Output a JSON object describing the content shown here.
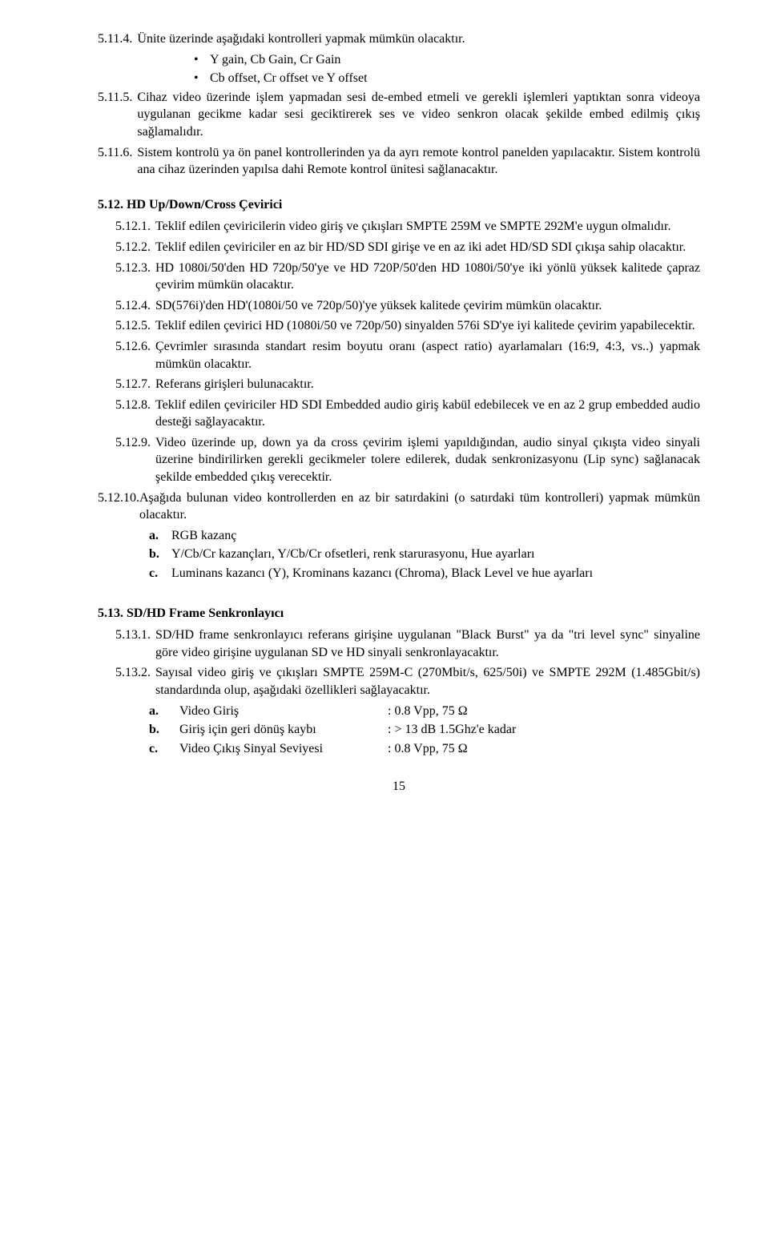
{
  "items_5_11_4": {
    "num": "5.11.4.",
    "text": "Ünite üzerinde aşağıdaki kontrolleri yapmak mümkün olacaktır.",
    "bullets": [
      "Y gain, Cb Gain, Cr Gain",
      "Cb offset, Cr offset ve Y offset"
    ]
  },
  "items_5_11_5": {
    "num": "5.11.5.",
    "text": "Cihaz video üzerinde işlem yapmadan sesi de-embed etmeli ve gerekli işlemleri yaptıktan sonra videoya uygulanan gecikme kadar sesi geciktirerek ses ve video senkron olacak şekilde embed edilmiş çıkış sağlamalıdır."
  },
  "items_5_11_6": {
    "num": "5.11.6.",
    "text": "Sistem kontrolü ya ön panel kontrollerinden ya da ayrı remote kontrol panelden yapılacaktır. Sistem kontrolü ana cihaz üzerinden yapılsa dahi Remote kontrol ünitesi sağlanacaktır."
  },
  "sec_5_12": {
    "title": "5.12. HD Up/Down/Cross Çevirici",
    "items": [
      {
        "num": "5.12.1.",
        "text": "Teklif edilen çeviricilerin video giriş ve çıkışları SMPTE 259M ve SMPTE 292M'e uygun olmalıdır."
      },
      {
        "num": "5.12.2.",
        "text": "Teklif edilen çeviriciler en az bir HD/SD SDI girişe ve en az iki adet HD/SD SDI çıkışa sahip olacaktır."
      },
      {
        "num": "5.12.3.",
        "text": "HD 1080i/50'den HD 720p/50'ye ve HD 720P/50'den HD 1080i/50'ye iki yönlü yüksek kalitede çapraz çevirim mümkün olacaktır."
      },
      {
        "num": "5.12.4.",
        "text": "SD(576i)'den HD'(1080i/50 ve 720p/50)'ye yüksek kalitede çevirim mümkün olacaktır."
      },
      {
        "num": "5.12.5.",
        "text": "Teklif edilen çevirici HD (1080i/50 ve 720p/50) sinyalden 576i SD'ye iyi kalitede çevirim yapabilecektir."
      },
      {
        "num": "5.12.6.",
        "text": "Çevrimler sırasında standart resim boyutu oranı (aspect ratio) ayarlamaları (16:9, 4:3, vs..) yapmak mümkün olacaktır."
      },
      {
        "num": "5.12.7.",
        "text": "Referans girişleri bulunacaktır."
      },
      {
        "num": "5.12.8.",
        "text": "Teklif edilen çeviriciler HD SDI Embedded audio giriş kabül edebilecek ve en az 2 grup embedded audio desteği sağlayacaktır."
      },
      {
        "num": "5.12.9.",
        "text": "Video üzerinde up, down ya da cross çevirim işlemi yapıldığından, audio sinyal çıkışta video sinyali üzerine bindirilirken gerekli gecikmeler tolere edilerek, dudak senkronizasyonu (Lip sync) sağlanacak şekilde embedded çıkış verecektir."
      }
    ],
    "item_10": {
      "num": "5.12.10.",
      "text": "Aşağıda bulunan video kontrollerden en az bir satırdakini (o satırdaki tüm kontrolleri) yapmak mümkün olacaktır.",
      "abc": [
        {
          "letter": "a.",
          "text": "RGB kazanç"
        },
        {
          "letter": "b.",
          "text": "Y/Cb/Cr kazançları, Y/Cb/Cr ofsetleri, renk starurasyonu, Hue ayarları"
        },
        {
          "letter": "c.",
          "text": "Luminans kazancı (Y), Krominans kazancı (Chroma), Black Level ve hue ayarları"
        }
      ]
    }
  },
  "sec_5_13": {
    "title": "5.13. SD/HD Frame Senkronlayıcı",
    "item_1": {
      "num": "5.13.1.",
      "text": "SD/HD frame senkronlayıcı referans girişine uygulanan \"Black Burst\" ya da \"tri level sync\" sinyaline göre video girişine uygulanan SD ve HD sinyali senkronlayacaktır."
    },
    "item_2": {
      "num": "5.13.2.",
      "text": "Sayısal video giriş ve çıkışları SMPTE 259M-C (270Mbit/s, 625/50i) ve SMPTE 292M (1.485Gbit/s) standardında olup, aşağıdaki özellikleri sağlayacaktır.",
      "specs": [
        {
          "letter": "a.",
          "label": "Video Giriş",
          "value": ": 0.8 Vpp, 75 Ω"
        },
        {
          "letter": "b.",
          "label": "Giriş için geri dönüş kaybı",
          "value": ": > 13 dB 1.5Ghz'e kadar"
        },
        {
          "letter": "c.",
          "label": "Video Çıkış Sinyal Seviyesi",
          "value": ": 0.8 Vpp, 75 Ω"
        }
      ]
    }
  },
  "page_number": "15"
}
